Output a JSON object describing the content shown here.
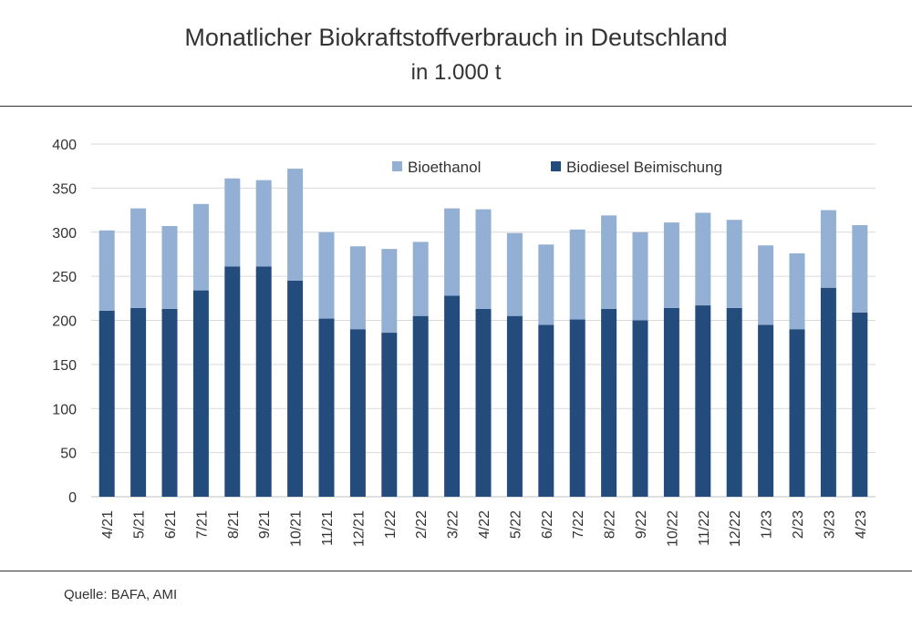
{
  "header": {
    "title": "Monatlicher Biokraftstoffverbrauch in Deutschland",
    "subtitle": "in 1.000 t"
  },
  "footer": {
    "source": "Quelle: BAFA, AMI"
  },
  "colors": {
    "biodiesel": "#234c7d",
    "bioethanol": "#93afd4",
    "grid": "#d9d9d9",
    "rule": "#333333"
  },
  "chart_data": {
    "type": "bar",
    "stacked": true,
    "title": "Monatlicher Biokraftstoffverbrauch in Deutschland",
    "subtitle": "in 1.000 t",
    "xlabel": "",
    "ylabel": "",
    "ylim": [
      0,
      400
    ],
    "yticks": [
      0,
      50,
      100,
      150,
      200,
      250,
      300,
      350,
      400
    ],
    "grid": true,
    "legend_position": "top-center",
    "categories": [
      "4/21",
      "5/21",
      "6/21",
      "7/21",
      "8/21",
      "9/21",
      "10/21",
      "11/21",
      "12/21",
      "1/22",
      "2/22",
      "3/22",
      "4/22",
      "5/22",
      "6/22",
      "7/22",
      "8/22",
      "9/22",
      "10/22",
      "11/22",
      "12/22",
      "1/23",
      "2/23",
      "3/23",
      "4/23"
    ],
    "series": [
      {
        "name": "Biodiesel Beimischung",
        "color": "#234c7d",
        "values": [
          211,
          214,
          213,
          234,
          261,
          261,
          245,
          202,
          190,
          186,
          205,
          228,
          213,
          205,
          195,
          201,
          213,
          200,
          214,
          217,
          214,
          195,
          190,
          237,
          209
        ]
      },
      {
        "name": "Bioethanol",
        "color": "#93afd4",
        "values": [
          91,
          113,
          94,
          98,
          100,
          98,
          127,
          98,
          94,
          95,
          84,
          99,
          113,
          94,
          91,
          102,
          106,
          100,
          97,
          105,
          100,
          90,
          86,
          88,
          99
        ]
      }
    ]
  }
}
